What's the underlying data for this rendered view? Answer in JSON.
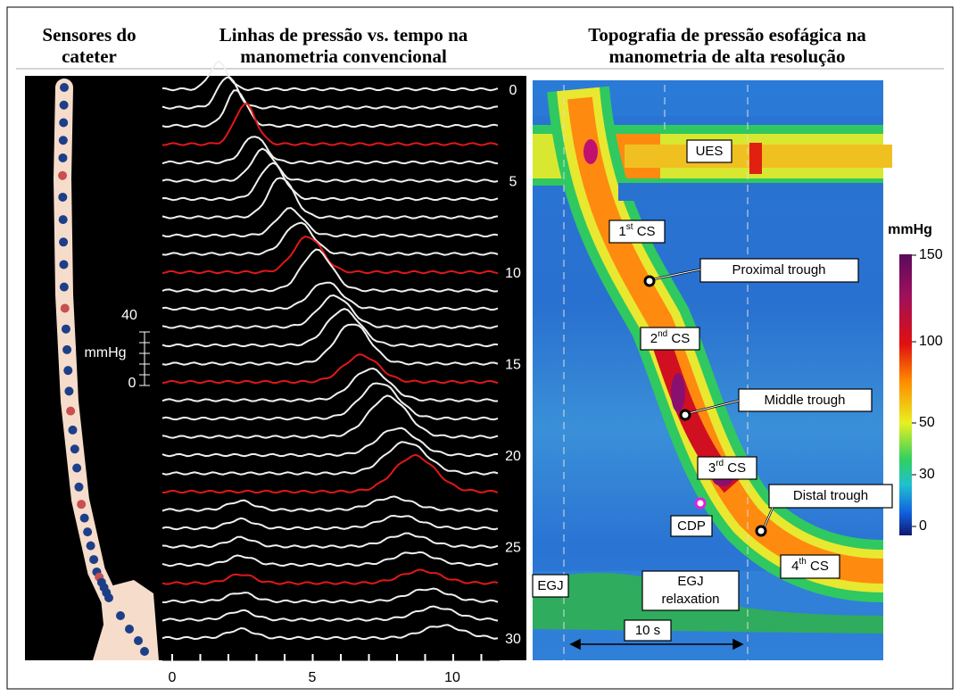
{
  "header": {
    "catheter_title": [
      "Sensores do",
      "cateter"
    ],
    "conventional_title": [
      "Linhas de pressão vs. tempo na",
      "manometria convencional"
    ],
    "hrm_title": [
      "Topografia de pressão esofágica na",
      "manometria de alta resolução"
    ]
  },
  "conventional": {
    "scale": {
      "top": "40",
      "unit": "mmHg",
      "bottom": "0"
    },
    "sensor_ticks": [
      "0",
      "5",
      "10",
      "15",
      "20",
      "25",
      "30"
    ],
    "time_ticks": [
      "0",
      "5",
      "10"
    ]
  },
  "hrm": {
    "labels": {
      "ues": "UES",
      "cs1": {
        "num": "1",
        "sup": "st",
        "rest": " CS"
      },
      "proximal_trough": "Proximal trough",
      "cs2": {
        "num": "2",
        "sup": "nd",
        "rest": " CS"
      },
      "middle_trough": "Middle trough",
      "cs3": {
        "num": "3",
        "sup": "rd",
        "rest": " CS"
      },
      "cdp": "CDP",
      "distal_trough": "Distal trough",
      "cs4": {
        "num": "4",
        "sup": "th",
        "rest": " CS"
      },
      "egj": "EGJ",
      "egj_relaxation": [
        "EGJ",
        "relaxation"
      ],
      "time_bar": "10 s"
    },
    "colorbar": {
      "unit": "mmHg",
      "ticks": [
        "150",
        "100",
        "50",
        "30",
        "0"
      ]
    }
  }
}
